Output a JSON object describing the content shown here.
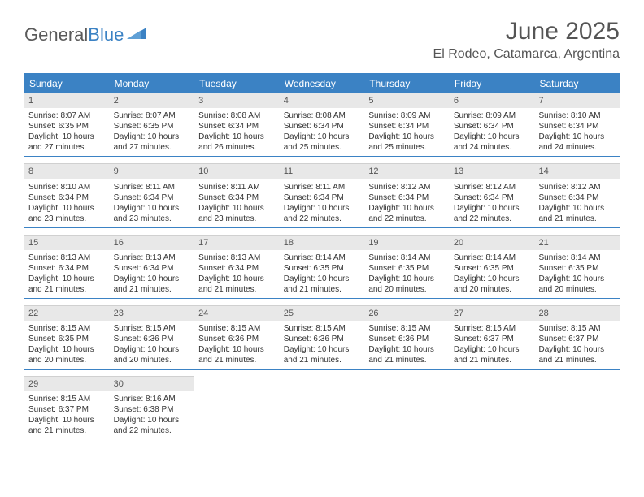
{
  "logo": {
    "word1": "General",
    "word2": "Blue"
  },
  "header": {
    "month_title": "June 2025",
    "location": "El Rodeo, Catamarca, Argentina"
  },
  "colors": {
    "accent": "#3b82c4",
    "header_cell_bg": "#e8e8e8",
    "text": "#333333",
    "title_text": "#555555",
    "background": "#ffffff"
  },
  "calendar": {
    "day_labels": [
      "Sunday",
      "Monday",
      "Tuesday",
      "Wednesday",
      "Thursday",
      "Friday",
      "Saturday"
    ],
    "weeks": [
      [
        {
          "n": "1",
          "sr": "Sunrise: 8:07 AM",
          "ss": "Sunset: 6:35 PM",
          "dl1": "Daylight: 10 hours",
          "dl2": "and 27 minutes."
        },
        {
          "n": "2",
          "sr": "Sunrise: 8:07 AM",
          "ss": "Sunset: 6:35 PM",
          "dl1": "Daylight: 10 hours",
          "dl2": "and 27 minutes."
        },
        {
          "n": "3",
          "sr": "Sunrise: 8:08 AM",
          "ss": "Sunset: 6:34 PM",
          "dl1": "Daylight: 10 hours",
          "dl2": "and 26 minutes."
        },
        {
          "n": "4",
          "sr": "Sunrise: 8:08 AM",
          "ss": "Sunset: 6:34 PM",
          "dl1": "Daylight: 10 hours",
          "dl2": "and 25 minutes."
        },
        {
          "n": "5",
          "sr": "Sunrise: 8:09 AM",
          "ss": "Sunset: 6:34 PM",
          "dl1": "Daylight: 10 hours",
          "dl2": "and 25 minutes."
        },
        {
          "n": "6",
          "sr": "Sunrise: 8:09 AM",
          "ss": "Sunset: 6:34 PM",
          "dl1": "Daylight: 10 hours",
          "dl2": "and 24 minutes."
        },
        {
          "n": "7",
          "sr": "Sunrise: 8:10 AM",
          "ss": "Sunset: 6:34 PM",
          "dl1": "Daylight: 10 hours",
          "dl2": "and 24 minutes."
        }
      ],
      [
        {
          "n": "8",
          "sr": "Sunrise: 8:10 AM",
          "ss": "Sunset: 6:34 PM",
          "dl1": "Daylight: 10 hours",
          "dl2": "and 23 minutes."
        },
        {
          "n": "9",
          "sr": "Sunrise: 8:11 AM",
          "ss": "Sunset: 6:34 PM",
          "dl1": "Daylight: 10 hours",
          "dl2": "and 23 minutes."
        },
        {
          "n": "10",
          "sr": "Sunrise: 8:11 AM",
          "ss": "Sunset: 6:34 PM",
          "dl1": "Daylight: 10 hours",
          "dl2": "and 23 minutes."
        },
        {
          "n": "11",
          "sr": "Sunrise: 8:11 AM",
          "ss": "Sunset: 6:34 PM",
          "dl1": "Daylight: 10 hours",
          "dl2": "and 22 minutes."
        },
        {
          "n": "12",
          "sr": "Sunrise: 8:12 AM",
          "ss": "Sunset: 6:34 PM",
          "dl1": "Daylight: 10 hours",
          "dl2": "and 22 minutes."
        },
        {
          "n": "13",
          "sr": "Sunrise: 8:12 AM",
          "ss": "Sunset: 6:34 PM",
          "dl1": "Daylight: 10 hours",
          "dl2": "and 22 minutes."
        },
        {
          "n": "14",
          "sr": "Sunrise: 8:12 AM",
          "ss": "Sunset: 6:34 PM",
          "dl1": "Daylight: 10 hours",
          "dl2": "and 21 minutes."
        }
      ],
      [
        {
          "n": "15",
          "sr": "Sunrise: 8:13 AM",
          "ss": "Sunset: 6:34 PM",
          "dl1": "Daylight: 10 hours",
          "dl2": "and 21 minutes."
        },
        {
          "n": "16",
          "sr": "Sunrise: 8:13 AM",
          "ss": "Sunset: 6:34 PM",
          "dl1": "Daylight: 10 hours",
          "dl2": "and 21 minutes."
        },
        {
          "n": "17",
          "sr": "Sunrise: 8:13 AM",
          "ss": "Sunset: 6:34 PM",
          "dl1": "Daylight: 10 hours",
          "dl2": "and 21 minutes."
        },
        {
          "n": "18",
          "sr": "Sunrise: 8:14 AM",
          "ss": "Sunset: 6:35 PM",
          "dl1": "Daylight: 10 hours",
          "dl2": "and 21 minutes."
        },
        {
          "n": "19",
          "sr": "Sunrise: 8:14 AM",
          "ss": "Sunset: 6:35 PM",
          "dl1": "Daylight: 10 hours",
          "dl2": "and 20 minutes."
        },
        {
          "n": "20",
          "sr": "Sunrise: 8:14 AM",
          "ss": "Sunset: 6:35 PM",
          "dl1": "Daylight: 10 hours",
          "dl2": "and 20 minutes."
        },
        {
          "n": "21",
          "sr": "Sunrise: 8:14 AM",
          "ss": "Sunset: 6:35 PM",
          "dl1": "Daylight: 10 hours",
          "dl2": "and 20 minutes."
        }
      ],
      [
        {
          "n": "22",
          "sr": "Sunrise: 8:15 AM",
          "ss": "Sunset: 6:35 PM",
          "dl1": "Daylight: 10 hours",
          "dl2": "and 20 minutes."
        },
        {
          "n": "23",
          "sr": "Sunrise: 8:15 AM",
          "ss": "Sunset: 6:36 PM",
          "dl1": "Daylight: 10 hours",
          "dl2": "and 20 minutes."
        },
        {
          "n": "24",
          "sr": "Sunrise: 8:15 AM",
          "ss": "Sunset: 6:36 PM",
          "dl1": "Daylight: 10 hours",
          "dl2": "and 21 minutes."
        },
        {
          "n": "25",
          "sr": "Sunrise: 8:15 AM",
          "ss": "Sunset: 6:36 PM",
          "dl1": "Daylight: 10 hours",
          "dl2": "and 21 minutes."
        },
        {
          "n": "26",
          "sr": "Sunrise: 8:15 AM",
          "ss": "Sunset: 6:36 PM",
          "dl1": "Daylight: 10 hours",
          "dl2": "and 21 minutes."
        },
        {
          "n": "27",
          "sr": "Sunrise: 8:15 AM",
          "ss": "Sunset: 6:37 PM",
          "dl1": "Daylight: 10 hours",
          "dl2": "and 21 minutes."
        },
        {
          "n": "28",
          "sr": "Sunrise: 8:15 AM",
          "ss": "Sunset: 6:37 PM",
          "dl1": "Daylight: 10 hours",
          "dl2": "and 21 minutes."
        }
      ],
      [
        {
          "n": "29",
          "sr": "Sunrise: 8:15 AM",
          "ss": "Sunset: 6:37 PM",
          "dl1": "Daylight: 10 hours",
          "dl2": "and 21 minutes."
        },
        {
          "n": "30",
          "sr": "Sunrise: 8:16 AM",
          "ss": "Sunset: 6:38 PM",
          "dl1": "Daylight: 10 hours",
          "dl2": "and 22 minutes."
        },
        null,
        null,
        null,
        null,
        null
      ]
    ]
  }
}
